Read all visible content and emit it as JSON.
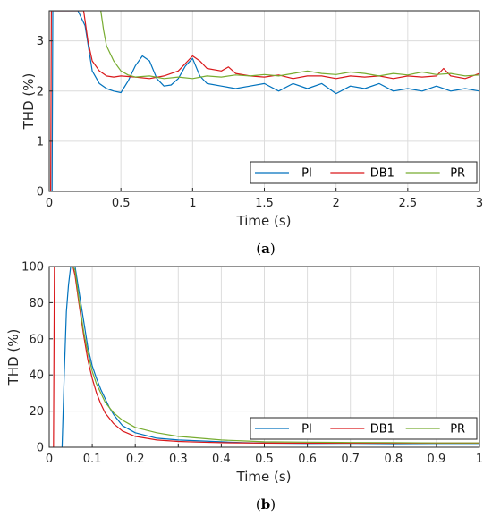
{
  "chart_data": [
    {
      "type": "line",
      "caption_label": "a",
      "xlabel": "Time (s)",
      "ylabel": "THD (%)",
      "xlim": [
        0,
        3
      ],
      "ylim": [
        0,
        3.6
      ],
      "xticks": [
        0,
        0.5,
        1,
        1.5,
        2,
        2.5,
        3
      ],
      "xtick_labels": [
        "0",
        "0.5",
        "1",
        "1.5",
        "2",
        "2.5",
        "3"
      ],
      "yticks": [
        0,
        1,
        2,
        3
      ],
      "ytick_labels": [
        "0",
        "1",
        "2",
        "3"
      ],
      "grid": true,
      "legend": "bottom-right",
      "series": [
        {
          "name": "PI",
          "color": "#0072bd",
          "x": [
            0.02,
            0.025,
            0.03,
            0.04,
            0.08,
            0.14,
            0.2,
            0.25,
            0.3,
            0.35,
            0.4,
            0.45,
            0.5,
            0.55,
            0.6,
            0.65,
            0.7,
            0.75,
            0.8,
            0.85,
            0.9,
            0.95,
            1.0,
            1.05,
            1.1,
            1.2,
            1.3,
            1.4,
            1.5,
            1.6,
            1.7,
            1.8,
            1.9,
            2.0,
            2.1,
            2.2,
            2.3,
            2.4,
            2.5,
            2.6,
            2.7,
            2.8,
            2.9,
            3.0
          ],
          "y": [
            0,
            3.6,
            3.6,
            3.6,
            3.6,
            3.6,
            3.6,
            3.3,
            2.4,
            2.15,
            2.05,
            2.0,
            1.97,
            2.2,
            2.5,
            2.7,
            2.6,
            2.25,
            2.1,
            2.12,
            2.25,
            2.5,
            2.65,
            2.3,
            2.15,
            2.1,
            2.05,
            2.1,
            2.15,
            2.0,
            2.15,
            2.05,
            2.15,
            1.95,
            2.1,
            2.05,
            2.15,
            2.0,
            2.05,
            2.0,
            2.1,
            2.0,
            2.05,
            2.0
          ]
        },
        {
          "name": "DB1",
          "color": "#d9181b",
          "x": [
            0.01,
            0.015,
            0.02,
            0.1,
            0.2,
            0.24,
            0.27,
            0.3,
            0.35,
            0.4,
            0.45,
            0.5,
            0.6,
            0.7,
            0.8,
            0.9,
            0.95,
            1.0,
            1.05,
            1.1,
            1.2,
            1.25,
            1.3,
            1.4,
            1.5,
            1.6,
            1.7,
            1.8,
            1.9,
            2.0,
            2.1,
            2.2,
            2.3,
            2.4,
            2.5,
            2.6,
            2.7,
            2.75,
            2.8,
            2.9,
            3.0
          ],
          "y": [
            0,
            3.6,
            3.6,
            3.6,
            3.6,
            3.6,
            3.0,
            2.6,
            2.4,
            2.3,
            2.28,
            2.3,
            2.28,
            2.25,
            2.3,
            2.4,
            2.55,
            2.7,
            2.6,
            2.45,
            2.4,
            2.48,
            2.35,
            2.3,
            2.28,
            2.32,
            2.25,
            2.3,
            2.3,
            2.25,
            2.3,
            2.28,
            2.3,
            2.25,
            2.3,
            2.28,
            2.3,
            2.45,
            2.3,
            2.25,
            2.35
          ]
        },
        {
          "name": "PR",
          "color": "#77ac30",
          "x": [
            0.36,
            0.38,
            0.4,
            0.45,
            0.5,
            0.55,
            0.6,
            0.7,
            0.8,
            0.9,
            1.0,
            1.1,
            1.2,
            1.3,
            1.4,
            1.5,
            1.6,
            1.7,
            1.8,
            1.9,
            2.0,
            2.1,
            2.2,
            2.3,
            2.4,
            2.5,
            2.6,
            2.7,
            2.8,
            2.9,
            3.0
          ],
          "y": [
            3.6,
            3.2,
            2.9,
            2.6,
            2.4,
            2.32,
            2.28,
            2.3,
            2.25,
            2.28,
            2.25,
            2.3,
            2.28,
            2.32,
            2.3,
            2.33,
            2.3,
            2.35,
            2.4,
            2.35,
            2.33,
            2.38,
            2.35,
            2.3,
            2.35,
            2.32,
            2.38,
            2.33,
            2.35,
            2.3,
            2.32
          ]
        }
      ]
    },
    {
      "type": "line",
      "caption_label": "b",
      "xlabel": "Time (s)",
      "ylabel": "THD (%)",
      "xlim": [
        0,
        1
      ],
      "ylim": [
        0,
        100
      ],
      "xticks": [
        0,
        0.1,
        0.2,
        0.3,
        0.4,
        0.5,
        0.6,
        0.7,
        0.8,
        0.9,
        1
      ],
      "xtick_labels": [
        "0",
        "0.1",
        "0.2",
        "0.3",
        "0.4",
        "0.5",
        "0.6",
        "0.7",
        "0.8",
        "0.9",
        "1"
      ],
      "yticks": [
        0,
        20,
        40,
        60,
        80,
        100
      ],
      "ytick_labels": [
        "0",
        "20",
        "40",
        "60",
        "80",
        "100"
      ],
      "grid": true,
      "legend": "bottom-right",
      "series": [
        {
          "name": "PI",
          "color": "#0072bd",
          "x": [
            0.03,
            0.035,
            0.04,
            0.045,
            0.05,
            0.055,
            0.06,
            0.07,
            0.08,
            0.09,
            0.1,
            0.11,
            0.12,
            0.13,
            0.14,
            0.15,
            0.17,
            0.2,
            0.25,
            0.3,
            0.35,
            0.4,
            0.45,
            0.5,
            0.6,
            0.7,
            0.8,
            0.9,
            1.0
          ],
          "y": [
            0,
            40,
            75,
            90,
            100,
            100,
            100,
            85,
            70,
            55,
            45,
            38,
            32,
            27,
            22,
            18,
            12,
            8,
            5,
            4,
            3.5,
            3,
            2.5,
            2.3,
            2.1,
            2.2,
            2.0,
            2.1,
            2.1
          ]
        },
        {
          "name": "DB1",
          "color": "#d9181b",
          "x": [
            0.01,
            0.012,
            0.015,
            0.05,
            0.055,
            0.06,
            0.07,
            0.08,
            0.09,
            0.1,
            0.11,
            0.12,
            0.13,
            0.15,
            0.17,
            0.2,
            0.25,
            0.3,
            0.35,
            0.4,
            0.5,
            0.6,
            0.7,
            0.8,
            0.9,
            1.0
          ],
          "y": [
            0,
            100,
            100,
            100,
            100,
            95,
            78,
            62,
            48,
            38,
            30,
            24,
            19,
            13,
            9,
            6,
            4,
            3.2,
            2.8,
            2.5,
            2.3,
            2.3,
            2.3,
            2.3,
            2.3,
            2.3
          ]
        },
        {
          "name": "PR",
          "color": "#77ac30",
          "x": [
            0.05,
            0.055,
            0.06,
            0.07,
            0.08,
            0.09,
            0.1,
            0.11,
            0.12,
            0.13,
            0.14,
            0.15,
            0.17,
            0.2,
            0.25,
            0.3,
            0.35,
            0.4,
            0.45,
            0.5,
            0.6,
            0.7,
            0.8,
            0.9,
            1.0
          ],
          "y": [
            100,
            100,
            98,
            80,
            64,
            52,
            42,
            35,
            30,
            25,
            22,
            19,
            15,
            11,
            8,
            6,
            5,
            4,
            3.5,
            3,
            2.8,
            2.6,
            2.5,
            2.4,
            2.4
          ]
        }
      ]
    }
  ]
}
